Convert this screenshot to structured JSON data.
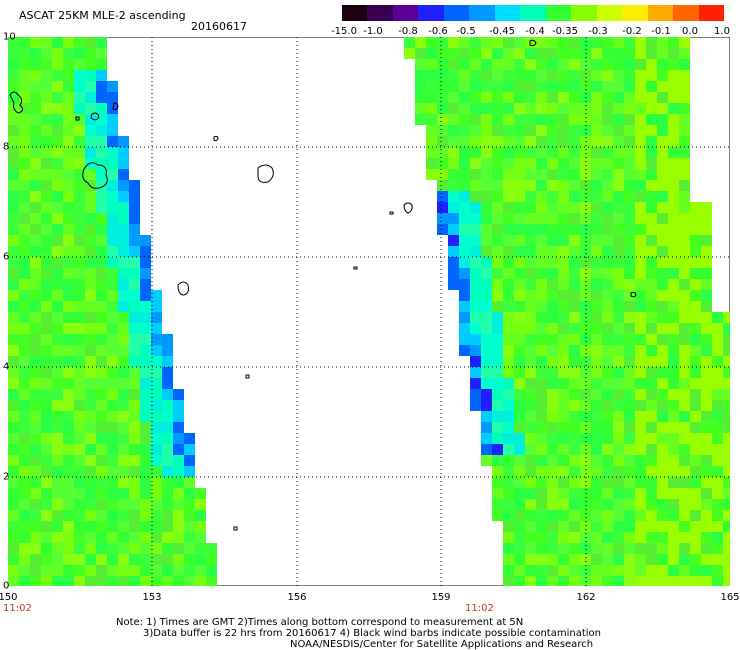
{
  "header": {
    "title": "ASCAT 25KM MLE-2 ascending",
    "date": "20160617"
  },
  "colorbar": {
    "labels": [
      "-15.0",
      "-1.0",
      "-0.8",
      "-0.6",
      "-0.5",
      "-0.45",
      "-0.4",
      "-0.35",
      "-0.3",
      "-0.2",
      "-0.1",
      "0.0",
      "1.0"
    ],
    "colors": [
      "#1a0010",
      "#3a0050",
      "#5a0096",
      "#2020ff",
      "#0066ff",
      "#0099ff",
      "#00ddff",
      "#00ffbb",
      "#33ff33",
      "#88ff00",
      "#ccff00",
      "#ffee00",
      "#ffaa00",
      "#ff6600",
      "#ff2200"
    ]
  },
  "map": {
    "lat_labels": [
      "10",
      "8",
      "6",
      "4",
      "2",
      "0"
    ],
    "lon_labels": [
      "150",
      "153",
      "156",
      "159",
      "162",
      "165"
    ],
    "pass_times": [
      "11:02",
      "11:02"
    ]
  },
  "notes": {
    "line1": "Note: 1) Times are GMT 2)Times along bottom correspond to measurement at 5N",
    "line2": "3)Data buffer is 22 hrs from 20160617 4) Black wind barbs indicate possible contamination",
    "line3": "NOAA/NESDIS/Center for Satellite Applications and Research"
  }
}
